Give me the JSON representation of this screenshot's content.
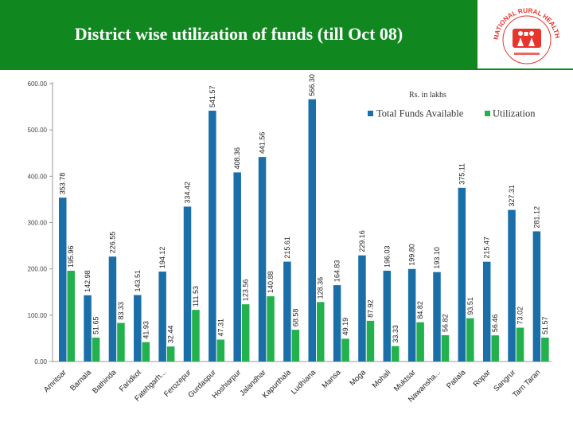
{
  "header": {
    "title": "District wise utilization of funds (till Oct 08)"
  },
  "logo": {
    "icon": "national-rural-health-mission-logo",
    "ring_text": "NATIONAL RURAL HEALTH MISSION",
    "accent_color": "#e8342c"
  },
  "colors": {
    "header_bg": "#11881f",
    "series_available": "#1b6fa8",
    "series_utilization": "#22b14c"
  },
  "chart_data": {
    "type": "bar",
    "units_note": "Rs. in lakhs",
    "ylim": [
      0,
      600
    ],
    "yticks": [
      "0.00",
      "100.00",
      "200.00",
      "300.00",
      "400.00",
      "500.00",
      "600.00"
    ],
    "legend_position": "top-right",
    "grid": false,
    "categories": [
      "Amritsar",
      "Barnala",
      "Bathinda",
      "Faridkot",
      "Fatehgarh...",
      "Ferozepur",
      "Gurdaspur",
      "Hoshiarpur",
      "Jalandhar",
      "Kapurthala",
      "Ludhiana",
      "Mansa",
      "Moga",
      "Mohali",
      "Muktsar",
      "Nawansha...",
      "Patiala",
      "Ropar",
      "Sangrur",
      "Tarn Taran"
    ],
    "series": [
      {
        "name": "Total Funds Available",
        "values": [
          353.78,
          142.98,
          226.55,
          143.51,
          194.12,
          334.42,
          541.57,
          408.36,
          441.56,
          215.61,
          566.3,
          164.83,
          229.16,
          196.03,
          199.8,
          193.1,
          375.11,
          215.47,
          327.31,
          281.12
        ],
        "labels": [
          "353.78",
          "142.98",
          "226.55",
          "143.51",
          "194.12",
          "334.42",
          "541.57",
          "408.36",
          "441.56",
          "215.61",
          "566.30",
          "164.83",
          "229.16",
          "196.03",
          "199.80",
          "193.10",
          "375.11",
          "215.47",
          "327.31",
          "281.12"
        ]
      },
      {
        "name": "Utilization",
        "values": [
          195.96,
          51.65,
          83.33,
          41.93,
          32.44,
          111.53,
          47.31,
          123.56,
          140.88,
          68.58,
          128.36,
          49.19,
          87.92,
          33.33,
          84.82,
          56.82,
          93.51,
          56.46,
          73.02,
          51.57
        ],
        "labels": [
          "195.96",
          "51.65",
          "83.33",
          "41.93",
          "32.44",
          "111.53",
          "47.31",
          "123.56",
          "140.88",
          "68.58",
          "128.36",
          "49.19",
          "87.92",
          "33.33",
          "84.82",
          "56.82",
          "93.51",
          "56.46",
          "73.02",
          "51.57"
        ]
      }
    ]
  }
}
